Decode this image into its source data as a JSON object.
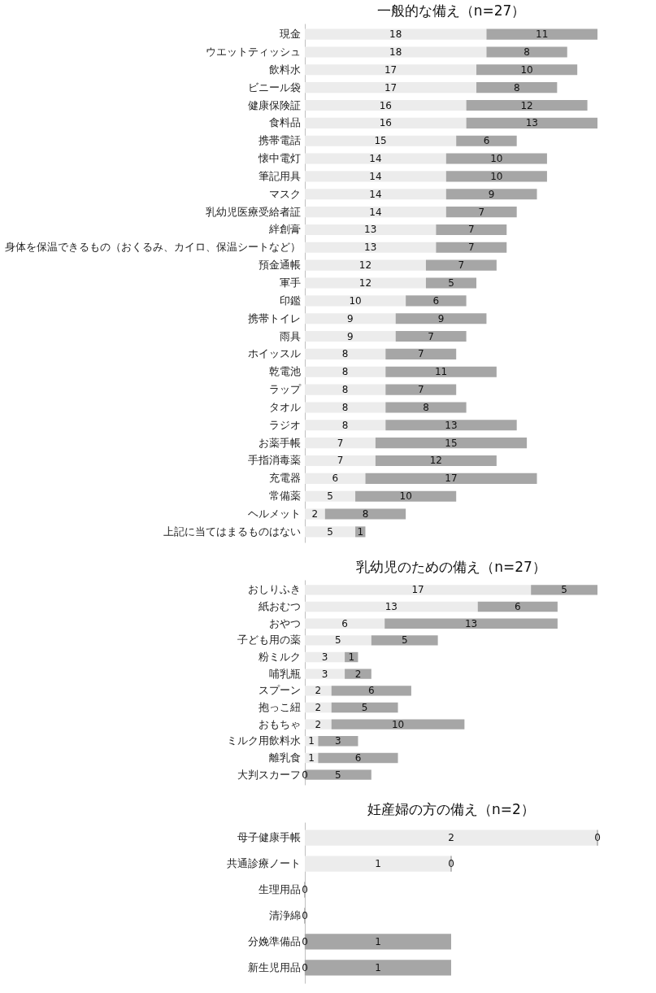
{
  "chart_data": [
    {
      "type": "bar",
      "orientation": "horizontal",
      "stacked": true,
      "data_labels": true,
      "title": "一般的な備え（n=27）",
      "categories": [
        "現金",
        "ウエットティッシュ",
        "飲料水",
        "ビニール袋",
        "健康保険証",
        "食料品",
        "携帯電話",
        "懐中電灯",
        "筆記用具",
        "マスク",
        "乳幼児医療受給者証",
        "絆創膏",
        "身体を保温できるもの（おくるみ、カイロ、保温シートなど）",
        "預金通帳",
        "軍手",
        "印鑑",
        "携帯トイレ",
        "雨具",
        "ホイッスル",
        "乾電池",
        "ラップ",
        "タオル",
        "ラジオ",
        "お薬手帳",
        "手指消毒薬",
        "充電器",
        "常備薬",
        "ヘルメット",
        "上記に当てはまるものはない"
      ],
      "series": [
        {
          "color": "#ececec",
          "values": [
            18,
            18,
            17,
            17,
            16,
            16,
            15,
            14,
            14,
            14,
            14,
            13,
            13,
            12,
            12,
            10,
            9,
            9,
            8,
            8,
            8,
            8,
            8,
            7,
            7,
            6,
            5,
            2,
            5
          ]
        },
        {
          "color": "#a6a6a6",
          "values": [
            11,
            8,
            10,
            8,
            12,
            13,
            6,
            10,
            10,
            9,
            7,
            7,
            7,
            7,
            5,
            6,
            9,
            7,
            7,
            11,
            7,
            8,
            13,
            15,
            12,
            17,
            10,
            8,
            1
          ]
        }
      ]
    },
    {
      "type": "bar",
      "orientation": "horizontal",
      "stacked": true,
      "title": "乳幼児のための備え（n=27）",
      "categories": [
        "おしりふき",
        "紙おむつ",
        "おやつ",
        "子ども用の薬",
        "粉ミルク",
        "哺乳瓶",
        "スプーン",
        "抱っこ紐",
        "おもちゃ",
        "ミルク用飲料水",
        "離乳食",
        "大判スカーフ"
      ],
      "series": [
        {
          "color": "#ececec",
          "values": [
            17,
            13,
            6,
            5,
            3,
            3,
            2,
            2,
            2,
            1,
            1,
            0
          ],
          "value_labels": [
            "17",
            "13",
            "6",
            "5",
            "3",
            "3",
            "2",
            "2",
            "2",
            "1",
            "1",
            "0"
          ]
        },
        {
          "color": "#a6a6a6",
          "values": [
            5,
            6,
            13,
            5,
            1,
            2,
            6,
            5,
            10,
            3,
            6,
            5
          ],
          "value_labels": [
            "5",
            "6",
            "13",
            "5",
            "1",
            "2",
            "6",
            "5",
            "10",
            "3",
            "6",
            "5"
          ]
        }
      ]
    },
    {
      "type": "bar",
      "orientation": "horizontal",
      "stacked": true,
      "title": "妊産婦の方の備え（n=2）",
      "categories": [
        "母子健康手帳",
        "共通診療ノート",
        "生理用品",
        "清浄綿",
        "分娩準備品",
        "新生児用品"
      ],
      "series": [
        {
          "color": "#ececec",
          "values": [
            2,
            1,
            0,
            0,
            0,
            0
          ],
          "value_labels": [
            "2",
            "1",
            "0",
            "0",
            "0",
            "0"
          ]
        },
        {
          "color": "#a6a6a6",
          "values": [
            0,
            0,
            0,
            0,
            1,
            1
          ],
          "value_labels": [
            "0",
            "0",
            null,
            null,
            "1",
            "1"
          ]
        }
      ]
    }
  ]
}
